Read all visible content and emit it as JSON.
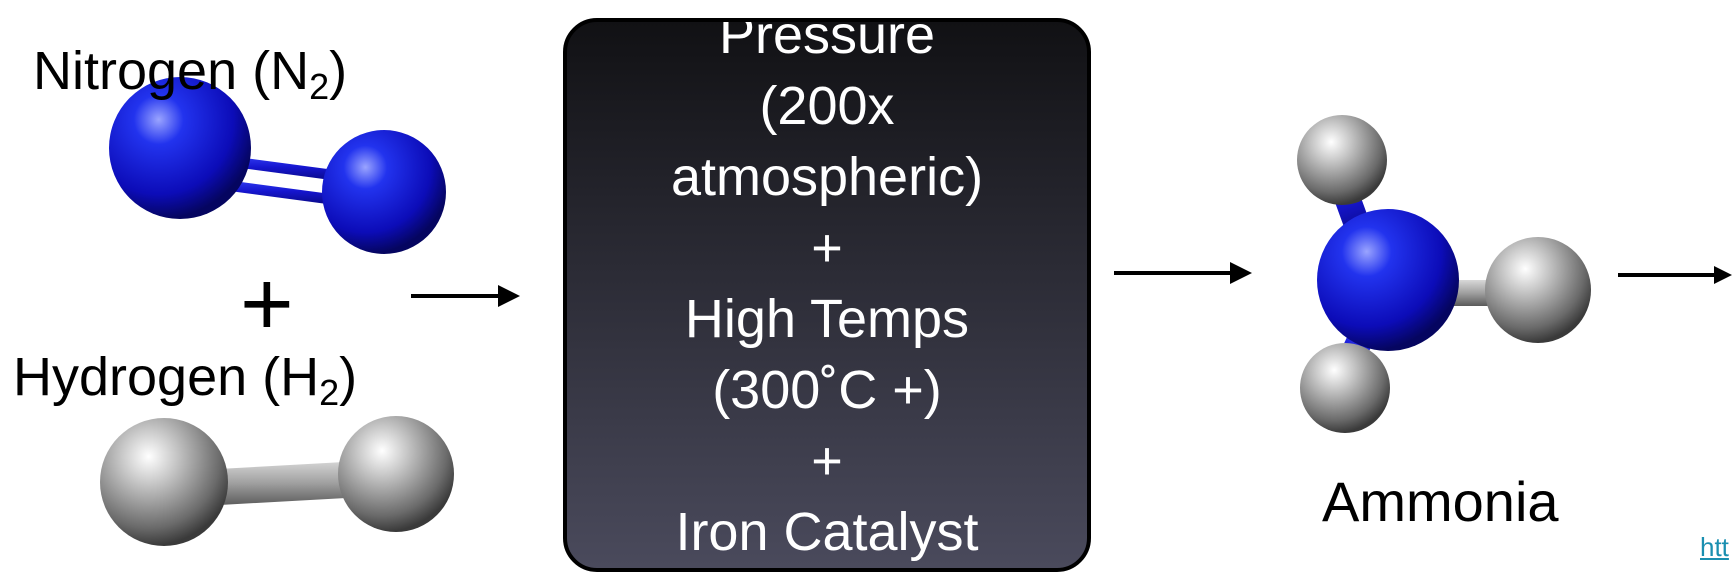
{
  "reactants": {
    "nitrogen": {
      "label": "Nitrogen (N",
      "subscript": "2",
      "close": ")"
    },
    "plus": "+",
    "hydrogen": {
      "label": "Hydrogen (H",
      "subscript": "2",
      "close": ")"
    }
  },
  "process": {
    "lines": [
      "Pressure",
      "(200x",
      "atmospheric)",
      "+",
      "High Temps",
      "(300˚C +)",
      "+",
      "Iron Catalyst"
    ]
  },
  "product": {
    "label": "Ammonia"
  },
  "source_link": {
    "text": "htt"
  },
  "colors": {
    "nitrogen_atom": "#1010d8",
    "hydrogen_atom": "#9a9a9a",
    "box_top": "#111114",
    "box_bottom": "#4a4a5c",
    "link": "#1a8fb0"
  },
  "icons": [
    "nitrogen-molecule-icon",
    "hydrogen-molecule-icon",
    "ammonia-molecule-icon",
    "arrow-icon"
  ]
}
